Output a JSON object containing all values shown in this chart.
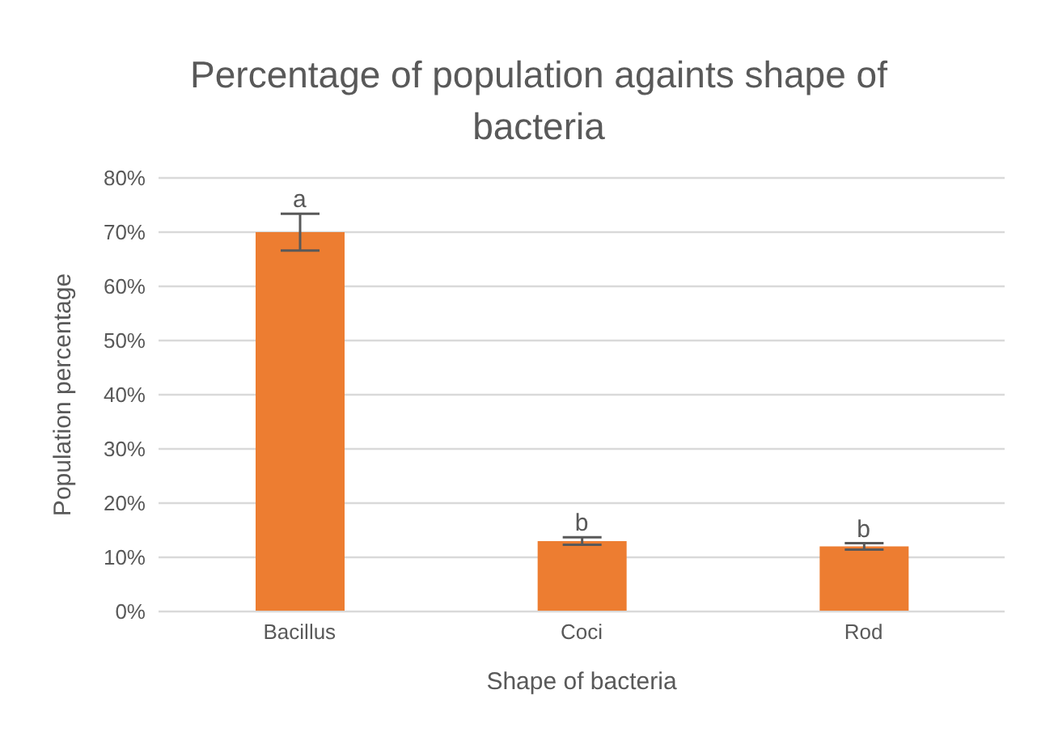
{
  "chart_data": {
    "type": "bar",
    "title": "Percentage of population againts shape of bacteria",
    "xlabel": "Shape of bacteria",
    "ylabel": "Population percentage",
    "categories": [
      "Bacillus",
      "Coci",
      "Rod"
    ],
    "values": [
      70,
      13,
      12
    ],
    "errors": [
      3.4,
      0.7,
      0.6
    ],
    "color": "#ed7d31",
    "ylim": [
      0,
      80
    ],
    "yticks": [
      {
        "value": 0,
        "label": "0%"
      },
      {
        "value": 10,
        "label": "10%"
      },
      {
        "value": 20,
        "label": "20%"
      },
      {
        "value": 30,
        "label": "30%"
      },
      {
        "value": 40,
        "label": "40%"
      },
      {
        "value": 50,
        "label": "50%"
      },
      {
        "value": 60,
        "label": "60%"
      },
      {
        "value": 70,
        "label": "70%"
      },
      {
        "value": 80,
        "label": "80%"
      }
    ],
    "grid": "y",
    "annotations": [
      {
        "text": "a",
        "x": "Bacillus",
        "y": 73.4
      },
      {
        "text": "b",
        "x": "Coci",
        "y": 13.7
      },
      {
        "text": "b",
        "x": "Rod",
        "y": 12.6
      }
    ]
  }
}
